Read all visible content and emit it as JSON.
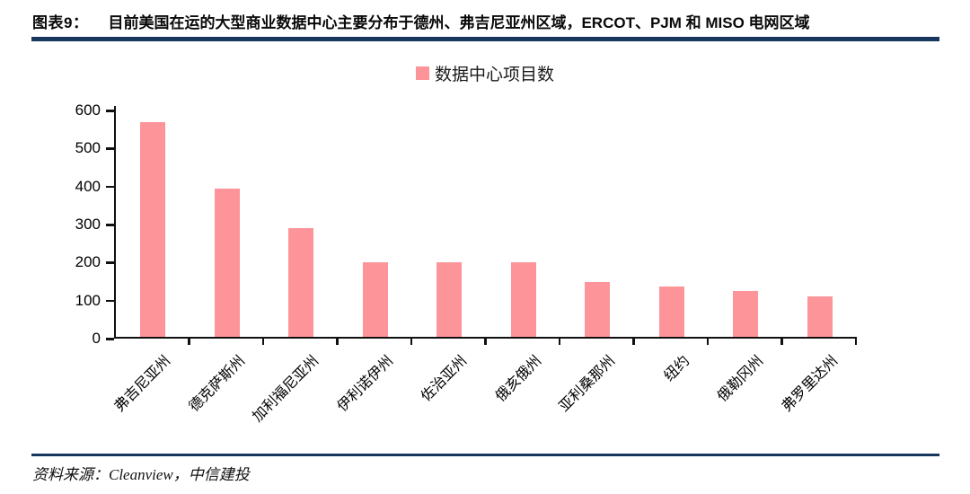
{
  "header": {
    "label": "图表9：",
    "title": "目前美国在运的大型商业数据中心主要分布于德州、弗吉尼亚州区域，ERCOT、PJM 和 MISO 电网区域"
  },
  "legend": {
    "label": "数据中心项目数"
  },
  "chart_data": {
    "type": "bar",
    "categories": [
      "弗吉尼亚州",
      "德克萨斯州",
      "加利福尼亚州",
      "伊利诺伊州",
      "佐治亚州",
      "俄亥俄州",
      "亚利桑那州",
      "纽约",
      "俄勒冈州",
      "弗罗里达州"
    ],
    "values": [
      565,
      390,
      285,
      195,
      195,
      195,
      145,
      132,
      120,
      107
    ],
    "title": "",
    "xlabel": "",
    "ylabel": "",
    "ylim": [
      0,
      600
    ],
    "yticks": [
      0,
      100,
      200,
      300,
      400,
      500,
      600
    ],
    "legend_entries": [
      "数据中心项目数"
    ],
    "legend_position": "top-center",
    "grid": false,
    "bar_color": "#FC9499"
  },
  "footer": {
    "source": "资料来源：Cleanview，中信建投"
  },
  "colors": {
    "accent_rule": "#17375e",
    "bar": "#FC9499",
    "axis": "#111111",
    "text": "#0a0a0a"
  }
}
